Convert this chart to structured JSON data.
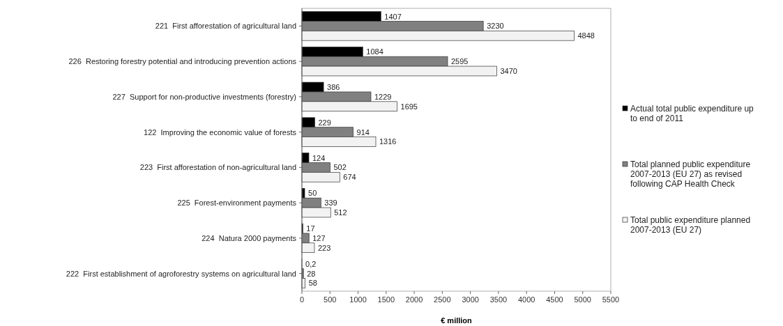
{
  "chart_data": {
    "type": "bar",
    "orientation": "horizontal",
    "xlabel": "€ million",
    "categories": [
      "221  First afforestation of agricultural land",
      "226  Restoring forestry potential and introducing prevention actions",
      "227  Support for non-productive investments (forestry)",
      "122  Improving the economic value of forests",
      "223  First afforestation of non-agricultural land",
      "225  Forest-environment payments",
      "224  Natura 2000 payments",
      "222  First establishment of agroforestry systems on agricultural land"
    ],
    "series": [
      {
        "name": "Actual total public expenditure up to end of 2011",
        "color": "#000000",
        "values": [
          1407,
          1084,
          386,
          229,
          124,
          50,
          17,
          0.2
        ],
        "value_labels": [
          "1407",
          "1084",
          "386",
          "229",
          "124",
          "50",
          "17",
          "0,2"
        ]
      },
      {
        "name": "Total planned public expenditure 2007-2013 (EU 27) as revised following CAP Health Check",
        "color": "#808080",
        "values": [
          3230,
          2595,
          1229,
          914,
          502,
          339,
          127,
          28
        ],
        "value_labels": [
          "3230",
          "2595",
          "1229",
          "914",
          "502",
          "339",
          "127",
          "28"
        ]
      },
      {
        "name": "Total public expenditure planned 2007-2013 (EU 27)",
        "color": "#f2f2f2",
        "values": [
          4848,
          3470,
          1695,
          1316,
          674,
          512,
          223,
          58
        ],
        "value_labels": [
          "4848",
          "3470",
          "1695",
          "1316",
          "674",
          "512",
          "223",
          "58"
        ]
      }
    ],
    "xlim": [
      0,
      5500
    ],
    "xticks": [
      0,
      500,
      1000,
      1500,
      2000,
      2500,
      3000,
      3500,
      4000,
      4500,
      5000,
      5500
    ],
    "legend": "right",
    "grid": false
  }
}
